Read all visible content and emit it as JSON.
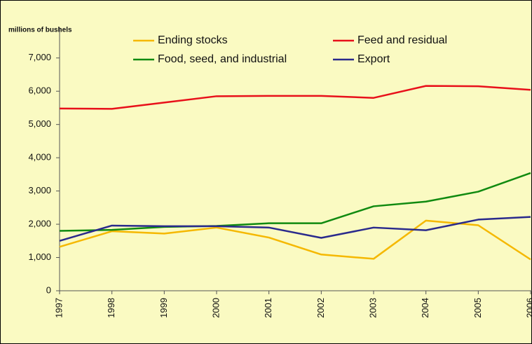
{
  "chart_data": {
    "type": "line",
    "y_axis_label": "millions of bushels",
    "categories": [
      "1997",
      "1998",
      "1999",
      "2000",
      "2001",
      "2002",
      "2003",
      "2004",
      "2005",
      "2006"
    ],
    "series": [
      {
        "name": "Ending stocks",
        "color": "#f5b800",
        "values": [
          1320,
          1790,
          1720,
          1900,
          1600,
          1090,
          960,
          2110,
          1970,
          940
        ]
      },
      {
        "name": "Feed and residual",
        "color": "#e8101a",
        "values": [
          5480,
          5470,
          5660,
          5850,
          5860,
          5860,
          5800,
          6160,
          6150,
          6040
        ]
      },
      {
        "name": "Food, seed, and industrial",
        "color": "#108a10",
        "values": [
          1800,
          1830,
          1920,
          1950,
          2030,
          2030,
          2540,
          2680,
          2980,
          3540
        ]
      },
      {
        "name": "Export",
        "color": "#2a2a8c",
        "values": [
          1500,
          1960,
          1940,
          1940,
          1900,
          1590,
          1900,
          1820,
          2140,
          2220
        ]
      }
    ],
    "ylim": [
      0,
      7500
    ],
    "yticks": [
      0,
      {
        "value": 1000,
        "label": "1,000"
      },
      {
        "value": 2000,
        "label": "2,000"
      },
      {
        "value": 3000,
        "label": "3,000"
      },
      {
        "value": 4000,
        "label": "4,000"
      },
      {
        "value": 5000,
        "label": "5,000"
      },
      {
        "value": 6000,
        "label": "6,000"
      },
      {
        "value": 7000,
        "label": "7,000"
      }
    ],
    "legend": "top"
  }
}
